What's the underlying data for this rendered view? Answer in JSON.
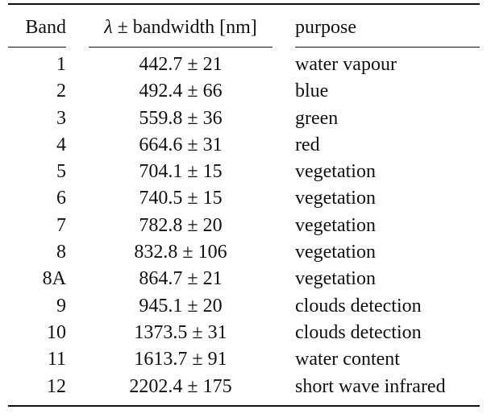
{
  "header": {
    "band": "Band",
    "wavelength_symbol": "λ",
    "wavelength_rest": " ± bandwidth [nm]",
    "purpose": "purpose"
  },
  "rows": [
    {
      "band": "1",
      "wavelength": "442.7 ± 21",
      "purpose": "water vapour"
    },
    {
      "band": "2",
      "wavelength": "492.4 ± 66",
      "purpose": "blue"
    },
    {
      "band": "3",
      "wavelength": "559.8 ± 36",
      "purpose": "green"
    },
    {
      "band": "4",
      "wavelength": "664.6 ± 31",
      "purpose": "red"
    },
    {
      "band": "5",
      "wavelength": "704.1 ± 15",
      "purpose": "vegetation"
    },
    {
      "band": "6",
      "wavelength": "740.5 ± 15",
      "purpose": "vegetation"
    },
    {
      "band": "7",
      "wavelength": "782.8 ± 20",
      "purpose": "vegetation"
    },
    {
      "band": "8",
      "wavelength": "832.8 ± 106",
      "purpose": "vegetation"
    },
    {
      "band": "8A",
      "wavelength": "864.7 ± 21",
      "purpose": "vegetation"
    },
    {
      "band": "9",
      "wavelength": "945.1 ± 20",
      "purpose": "clouds detection"
    },
    {
      "band": "10",
      "wavelength": "1373.5 ± 31",
      "purpose": "clouds detection"
    },
    {
      "band": "11",
      "wavelength": "1613.7 ± 91",
      "purpose": "water content"
    },
    {
      "band": "12",
      "wavelength": "2202.4 ± 175",
      "purpose": "short wave infrared"
    }
  ]
}
